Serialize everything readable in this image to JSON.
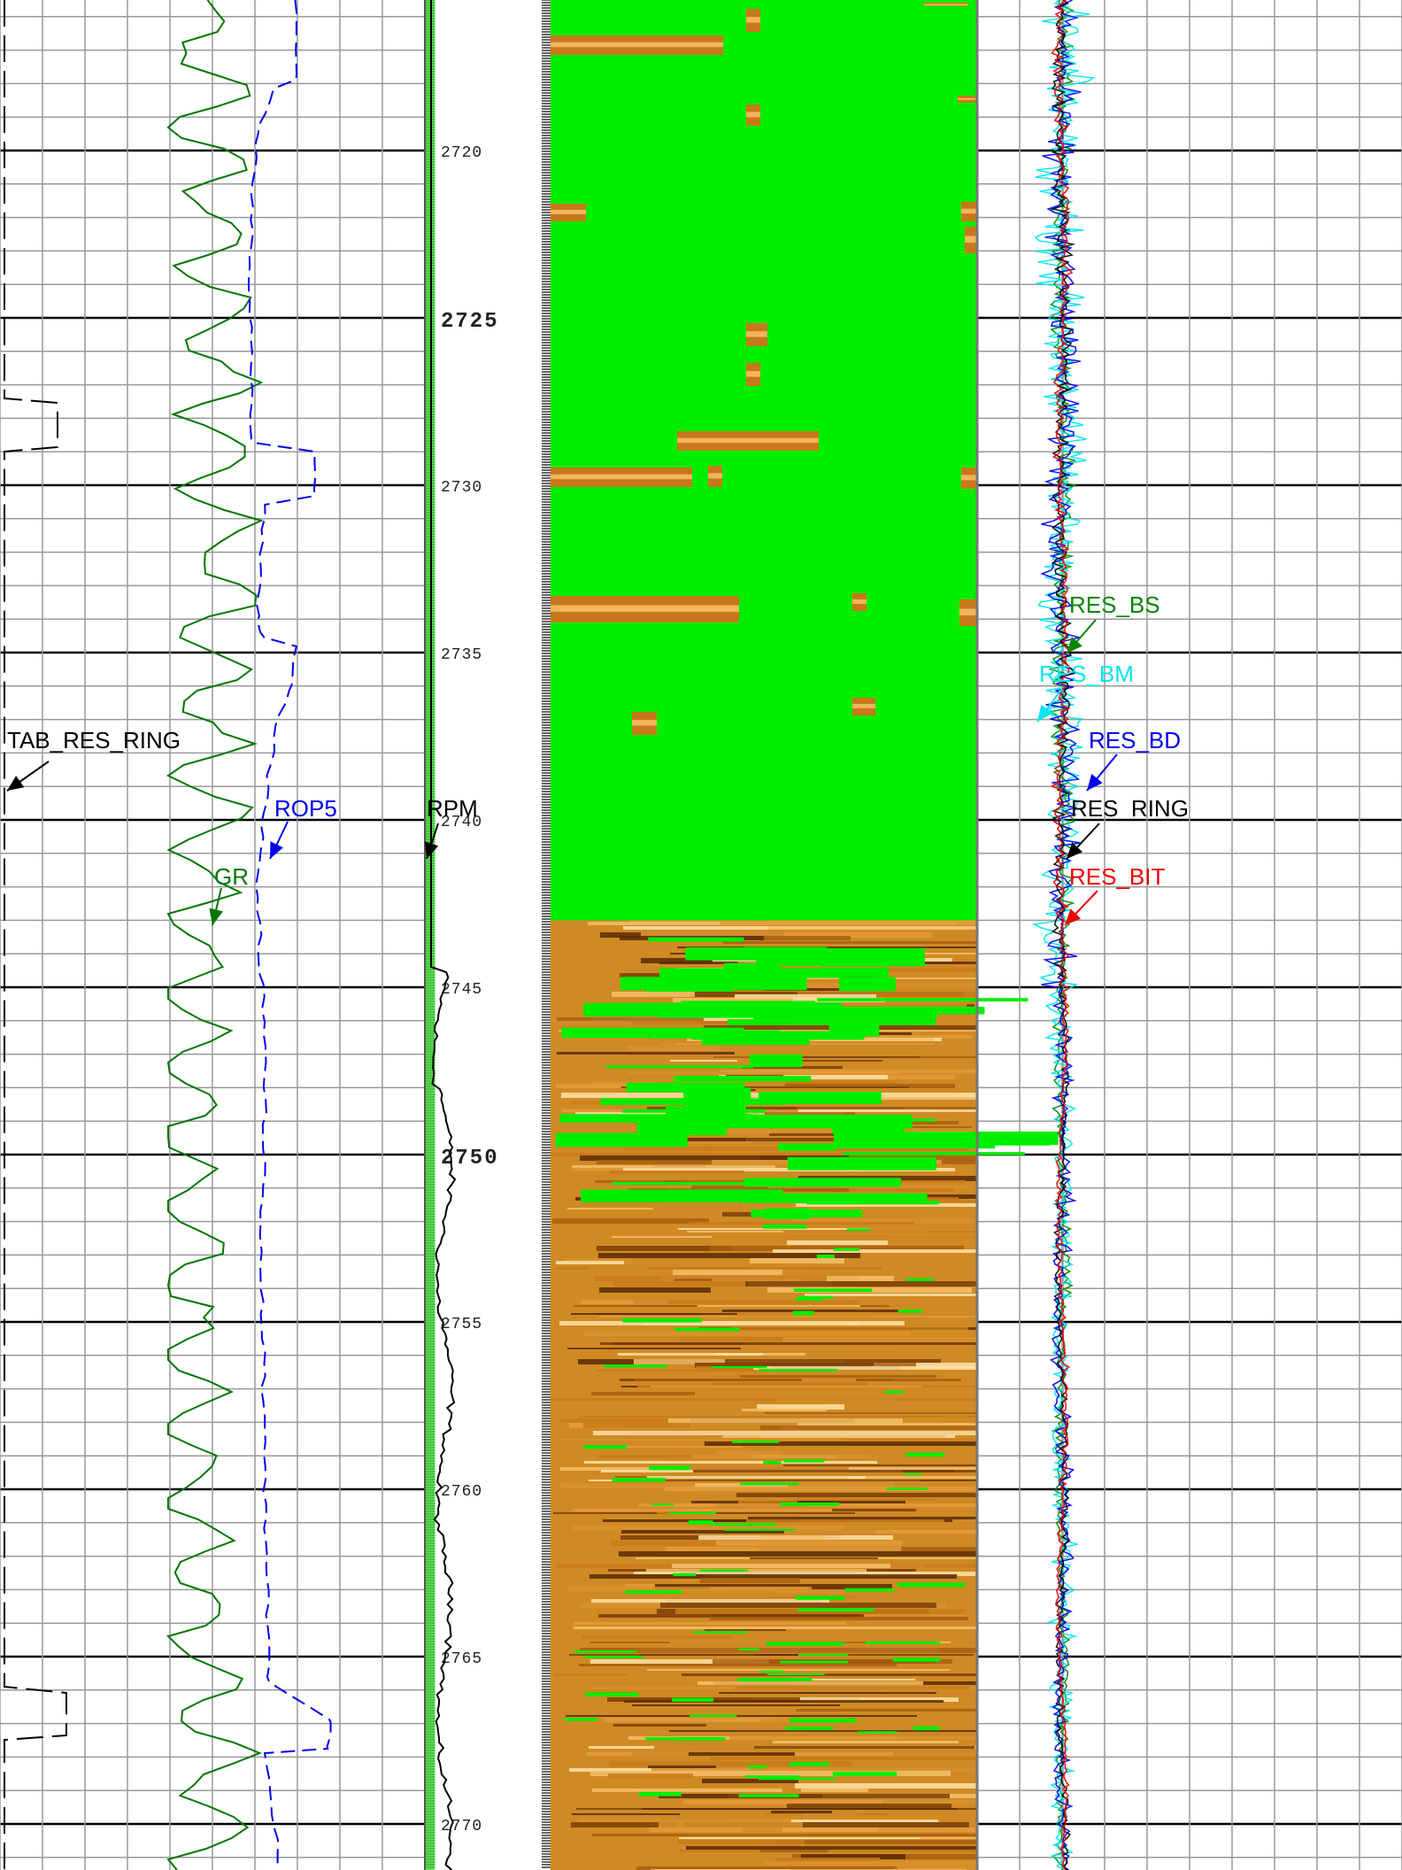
{
  "chart_data": {
    "type": "line",
    "depth_axis": {
      "range": [
        2715.5,
        2771.5
      ],
      "ticks": [
        2720,
        2725,
        2730,
        2735,
        2740,
        2745,
        2750,
        2755,
        2760,
        2765,
        2770
      ],
      "tick_labels": [
        "2720",
        "2725",
        "2730",
        "2735",
        "2740",
        "2745",
        "2750",
        "2755",
        "2760",
        "2765",
        "2770"
      ],
      "major_every": 5,
      "minor_every": 1
    },
    "tracks": [
      {
        "name": "left-track",
        "curves": [
          {
            "name": "TAB_RES_RING",
            "color": "#000000",
            "style": "long-dash"
          },
          {
            "name": "ROP5",
            "color": "#0000ee",
            "style": "dashed"
          },
          {
            "name": "GR",
            "color": "#007700",
            "style": "solid"
          }
        ]
      },
      {
        "name": "depth-track",
        "curves": [
          {
            "name": "RPM",
            "color": "#000000",
            "style": "solid"
          }
        ]
      },
      {
        "name": "image-track",
        "image": {
          "type": "borehole-image",
          "colormap": "copper",
          "null_color": "#00ee00",
          "null_end_depth": 2743.0
        }
      },
      {
        "name": "resistivity-track",
        "curves": [
          {
            "name": "RES_BS",
            "color": "#008800"
          },
          {
            "name": "RES_BM",
            "color": "#00e5ee"
          },
          {
            "name": "RES_BD",
            "color": "#0000ee"
          },
          {
            "name": "RES_RING",
            "color": "#000000"
          },
          {
            "name": "RES_BIT",
            "color": "#ee0000"
          }
        ]
      }
    ],
    "grid": true
  }
}
